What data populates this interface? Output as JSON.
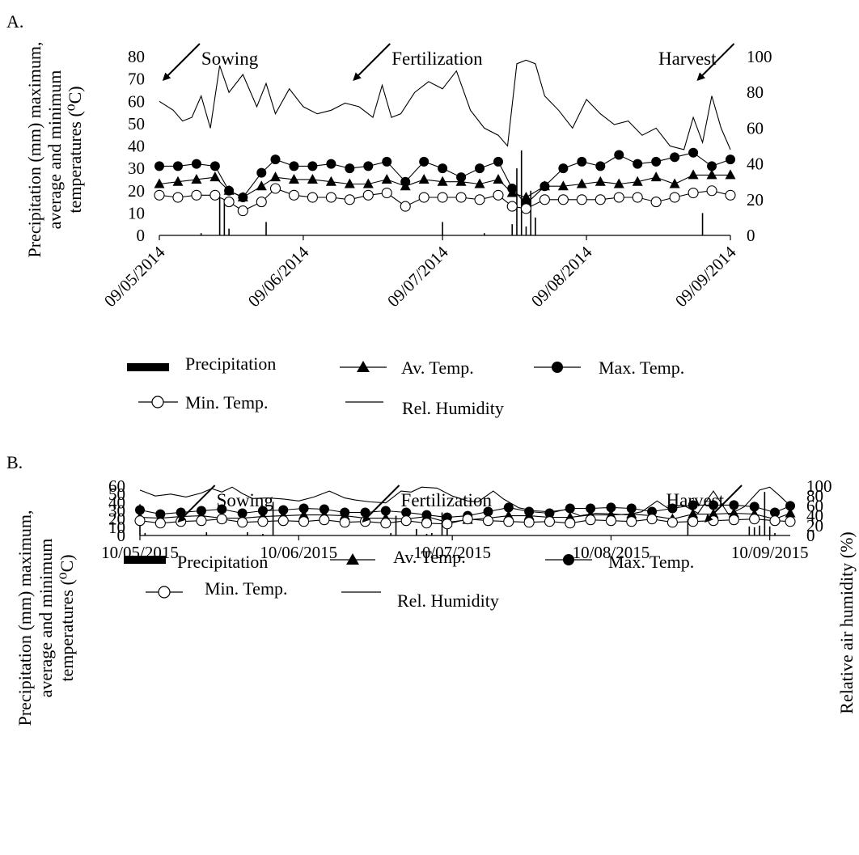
{
  "figure": {
    "legend": {
      "precipitation": "Precipitation",
      "avg": "Av. Temp.",
      "max": "Max. Temp.",
      "min": "Min. Temp.",
      "rh": "Rel. Humidity"
    },
    "colors": {
      "ink": "#000000",
      "background": "#ffffff",
      "open_marker_fill": "#ffffff"
    }
  },
  "chart_data": [
    {
      "type": "line",
      "panel_label": "A.",
      "ylabel": [
        "Precipitation (mm) maximum,",
        "average and minimum",
        "temperatures (⁰C)"
      ],
      "y2label": "",
      "ylim": [
        0,
        80
      ],
      "y_ticks": [
        0,
        10,
        20,
        30,
        40,
        50,
        60,
        70,
        80
      ],
      "y2lim": [
        0,
        100
      ],
      "y2_ticks": [
        0,
        20,
        40,
        60,
        80,
        100
      ],
      "x_range": [
        "2014-05-09",
        "2014-09-09"
      ],
      "x_tick_labels": [
        "09/05/2014",
        "09/06/2014",
        "09/07/2014",
        "09/08/2014",
        "09/09/2014"
      ],
      "x_tick_dates": [
        "2014-05-09",
        "2014-06-09",
        "2014-07-09",
        "2014-08-09",
        "2014-09-09"
      ],
      "x_tick_rotation": "-45deg",
      "annotations": [
        {
          "text": "Sowing",
          "date": "2014-05-17"
        },
        {
          "text": "Fertilization",
          "date": "2014-06-27"
        },
        {
          "text": "Harvest",
          "date": "2014-09-07"
        }
      ],
      "grid": false,
      "legend_position": "bottom",
      "series": [
        {
          "name": "Precipitation",
          "type": "bar",
          "axis": "left",
          "x": [
            "2014-05-18",
            "2014-05-22",
            "2014-05-23",
            "2014-05-24",
            "2014-06-01",
            "2014-07-09",
            "2014-07-18",
            "2014-07-24",
            "2014-07-25",
            "2014-07-26",
            "2014-07-27",
            "2014-07-28",
            "2014-07-29",
            "2014-09-03"
          ],
          "values": [
            1,
            17,
            16,
            3,
            6,
            6,
            1,
            5,
            30,
            38,
            4,
            20,
            8,
            10
          ]
        },
        {
          "name": "Av. Temp.",
          "marker": "triangle",
          "axis": "left",
          "x": [
            "2014-05-09",
            "2014-05-13",
            "2014-05-17",
            "2014-05-21",
            "2014-05-24",
            "2014-05-27",
            "2014-05-31",
            "2014-06-03",
            "2014-06-07",
            "2014-06-11",
            "2014-06-15",
            "2014-06-19",
            "2014-06-23",
            "2014-06-27",
            "2014-07-01",
            "2014-07-05",
            "2014-07-09",
            "2014-07-13",
            "2014-07-17",
            "2014-07-21",
            "2014-07-24",
            "2014-07-27",
            "2014-07-31",
            "2014-08-04",
            "2014-08-08",
            "2014-08-12",
            "2014-08-16",
            "2014-08-20",
            "2014-08-24",
            "2014-08-28",
            "2014-09-01",
            "2014-09-05",
            "2014-09-09"
          ],
          "values": [
            23,
            24,
            25,
            26,
            20,
            17,
            22,
            26,
            25,
            25,
            24,
            23,
            23,
            25,
            22,
            25,
            24,
            24,
            23,
            25,
            19,
            17,
            22,
            22,
            23,
            24,
            23,
            24,
            26,
            23,
            27,
            27,
            27
          ]
        },
        {
          "name": "Max. Temp.",
          "marker": "filled-circle",
          "axis": "left",
          "x": [
            "2014-05-09",
            "2014-05-13",
            "2014-05-17",
            "2014-05-21",
            "2014-05-24",
            "2014-05-27",
            "2014-05-31",
            "2014-06-03",
            "2014-06-07",
            "2014-06-11",
            "2014-06-15",
            "2014-06-19",
            "2014-06-23",
            "2014-06-27",
            "2014-07-01",
            "2014-07-05",
            "2014-07-09",
            "2014-07-13",
            "2014-07-17",
            "2014-07-21",
            "2014-07-24",
            "2014-07-27",
            "2014-07-31",
            "2014-08-04",
            "2014-08-08",
            "2014-08-12",
            "2014-08-16",
            "2014-08-20",
            "2014-08-24",
            "2014-08-28",
            "2014-09-01",
            "2014-09-05",
            "2014-09-09"
          ],
          "values": [
            31,
            31,
            32,
            31,
            20,
            17,
            28,
            34,
            31,
            31,
            32,
            30,
            31,
            33,
            24,
            33,
            30,
            26,
            30,
            33,
            21,
            14,
            22,
            30,
            33,
            31,
            36,
            32,
            33,
            35,
            37,
            31,
            34
          ]
        },
        {
          "name": "Min. Temp.",
          "marker": "open-circle",
          "axis": "left",
          "x": [
            "2014-05-09",
            "2014-05-13",
            "2014-05-17",
            "2014-05-21",
            "2014-05-24",
            "2014-05-27",
            "2014-05-31",
            "2014-06-03",
            "2014-06-07",
            "2014-06-11",
            "2014-06-15",
            "2014-06-19",
            "2014-06-23",
            "2014-06-27",
            "2014-07-01",
            "2014-07-05",
            "2014-07-09",
            "2014-07-13",
            "2014-07-17",
            "2014-07-21",
            "2014-07-24",
            "2014-07-27",
            "2014-07-31",
            "2014-08-04",
            "2014-08-08",
            "2014-08-12",
            "2014-08-16",
            "2014-08-20",
            "2014-08-24",
            "2014-08-28",
            "2014-09-01",
            "2014-09-05",
            "2014-09-09"
          ],
          "values": [
            18,
            17,
            18,
            18,
            15,
            11,
            15,
            21,
            18,
            17,
            17,
            16,
            18,
            19,
            13,
            17,
            17,
            17,
            16,
            18,
            13,
            12,
            16,
            16,
            16,
            16,
            17,
            17,
            15,
            17,
            19,
            20,
            18
          ]
        },
        {
          "name": "Rel. Humidity",
          "marker": "none",
          "axis": "right",
          "x": [
            "2014-05-09",
            "2014-05-12",
            "2014-05-14",
            "2014-05-16",
            "2014-05-18",
            "2014-05-20",
            "2014-05-22",
            "2014-05-24",
            "2014-05-27",
            "2014-05-30",
            "2014-06-01",
            "2014-06-03",
            "2014-06-06",
            "2014-06-09",
            "2014-06-12",
            "2014-06-15",
            "2014-06-18",
            "2014-06-21",
            "2014-06-24",
            "2014-06-26",
            "2014-06-28",
            "2014-06-30",
            "2014-07-03",
            "2014-07-06",
            "2014-07-09",
            "2014-07-12",
            "2014-07-15",
            "2014-07-18",
            "2014-07-21",
            "2014-07-23",
            "2014-07-25",
            "2014-07-27",
            "2014-07-29",
            "2014-07-31",
            "2014-08-03",
            "2014-08-06",
            "2014-08-09",
            "2014-08-12",
            "2014-08-15",
            "2014-08-18",
            "2014-08-21",
            "2014-08-24",
            "2014-08-27",
            "2014-08-30",
            "2014-09-01",
            "2014-09-03",
            "2014-09-05",
            "2014-09-07",
            "2014-09-09"
          ],
          "values": [
            75,
            70,
            64,
            66,
            78,
            60,
            95,
            80,
            90,
            72,
            85,
            68,
            82,
            72,
            68,
            70,
            74,
            72,
            66,
            84,
            66,
            68,
            80,
            86,
            82,
            92,
            70,
            60,
            56,
            50,
            96,
            98,
            96,
            78,
            70,
            60,
            76,
            68,
            62,
            64,
            56,
            60,
            50,
            48,
            66,
            52,
            78,
            60,
            48
          ]
        }
      ]
    },
    {
      "type": "line",
      "panel_label": "B.",
      "ylabel": [
        "Precipitation (mm) maximum,",
        "average and minimum",
        "temperatures (⁰C)"
      ],
      "y2label": "Relative air humidity (%)",
      "ylim": [
        0,
        60
      ],
      "y_ticks": [
        0,
        10,
        20,
        30,
        40,
        50,
        60
      ],
      "y2lim": [
        0,
        100
      ],
      "y2_ticks": [
        0,
        20,
        40,
        60,
        80,
        100
      ],
      "x_range": [
        "2015-05-10",
        "2015-09-14"
      ],
      "x_tick_labels": [
        "10/05/2015",
        "10/06/2015",
        "10/07/2015",
        "10/08/2015",
        "10/09/2015"
      ],
      "x_tick_dates": [
        "2015-05-10",
        "2015-06-10",
        "2015-07-10",
        "2015-08-10",
        "2015-09-10"
      ],
      "x_tick_rotation": "0deg",
      "annotations": [
        {
          "text": "Sowing",
          "date": "2015-05-24"
        },
        {
          "text": "Fertilization",
          "date": "2015-06-29"
        },
        {
          "text": "Harvest",
          "date": "2015-09-02"
        }
      ],
      "grid": false,
      "legend_position": "bottom",
      "series": [
        {
          "name": "Precipitation",
          "type": "bar",
          "axis": "left",
          "x": [
            "2015-05-10",
            "2015-05-11",
            "2015-05-23",
            "2015-05-31",
            "2015-06-03",
            "2015-06-05",
            "2015-06-28",
            "2015-06-29",
            "2015-07-03",
            "2015-07-05",
            "2015-07-06",
            "2015-07-08",
            "2015-07-09",
            "2015-08-25",
            "2015-09-06",
            "2015-09-07",
            "2015-09-08",
            "2015-09-09",
            "2015-09-10",
            "2015-09-11"
          ],
          "values": [
            38,
            3,
            4,
            4,
            2,
            41,
            3,
            24,
            8,
            2,
            3,
            28,
            8,
            20,
            11,
            10,
            12,
            53,
            11,
            3
          ]
        },
        {
          "name": "Av. Temp.",
          "marker": "triangle",
          "axis": "left",
          "x": [
            "2015-05-10",
            "2015-05-14",
            "2015-05-18",
            "2015-05-22",
            "2015-05-26",
            "2015-05-30",
            "2015-06-03",
            "2015-06-07",
            "2015-06-11",
            "2015-06-15",
            "2015-06-19",
            "2015-06-23",
            "2015-06-27",
            "2015-07-01",
            "2015-07-05",
            "2015-07-09",
            "2015-07-13",
            "2015-07-17",
            "2015-07-21",
            "2015-07-25",
            "2015-07-29",
            "2015-08-02",
            "2015-08-06",
            "2015-08-10",
            "2015-08-14",
            "2015-08-18",
            "2015-08-22",
            "2015-08-26",
            "2015-08-30",
            "2015-09-03",
            "2015-09-07",
            "2015-09-11",
            "2015-09-14"
          ],
          "values": [
            22,
            21,
            23,
            24,
            21,
            21,
            23,
            24,
            25,
            25,
            24,
            21,
            21,
            20,
            23,
            16,
            19,
            21,
            24,
            24,
            22,
            22,
            25,
            25,
            26,
            24,
            20,
            26,
            26,
            27,
            26,
            20,
            27
          ]
        },
        {
          "name": "Max. Temp.",
          "marker": "filled-circle",
          "axis": "left",
          "x": [
            "2015-05-10",
            "2015-05-14",
            "2015-05-18",
            "2015-05-22",
            "2015-05-26",
            "2015-05-30",
            "2015-06-03",
            "2015-06-07",
            "2015-06-11",
            "2015-06-15",
            "2015-06-19",
            "2015-06-23",
            "2015-06-27",
            "2015-07-01",
            "2015-07-05",
            "2015-07-09",
            "2015-07-13",
            "2015-07-17",
            "2015-07-21",
            "2015-07-25",
            "2015-07-29",
            "2015-08-02",
            "2015-08-06",
            "2015-08-10",
            "2015-08-14",
            "2015-08-18",
            "2015-08-22",
            "2015-08-26",
            "2015-08-30",
            "2015-09-03",
            "2015-09-07",
            "2015-09-11",
            "2015-09-14"
          ],
          "values": [
            31,
            26,
            28,
            30,
            32,
            27,
            30,
            31,
            33,
            32,
            28,
            28,
            30,
            28,
            25,
            22,
            24,
            29,
            34,
            29,
            27,
            33,
            33,
            34,
            33,
            29,
            33,
            37,
            37,
            37,
            35,
            28,
            36
          ]
        },
        {
          "name": "Min. Temp.",
          "marker": "open-circle",
          "axis": "left",
          "x": [
            "2015-05-10",
            "2015-05-14",
            "2015-05-18",
            "2015-05-22",
            "2015-05-26",
            "2015-05-30",
            "2015-06-03",
            "2015-06-07",
            "2015-06-11",
            "2015-06-15",
            "2015-06-19",
            "2015-06-23",
            "2015-06-27",
            "2015-07-01",
            "2015-07-05",
            "2015-07-09",
            "2015-07-13",
            "2015-07-17",
            "2015-07-21",
            "2015-07-25",
            "2015-07-29",
            "2015-08-02",
            "2015-08-06",
            "2015-08-10",
            "2015-08-14",
            "2015-08-18",
            "2015-08-22",
            "2015-08-26",
            "2015-08-30",
            "2015-09-03",
            "2015-09-07",
            "2015-09-11",
            "2015-09-14"
          ],
          "values": [
            18,
            15,
            17,
            18,
            20,
            16,
            17,
            18,
            17,
            19,
            16,
            17,
            15,
            18,
            15,
            14,
            20,
            18,
            17,
            16,
            17,
            15,
            19,
            18,
            17,
            20,
            16,
            17,
            18,
            19,
            20,
            18,
            17
          ]
        },
        {
          "name": "Rel. Humidity",
          "marker": "none",
          "axis": "right",
          "x": [
            "2015-05-10",
            "2015-05-13",
            "2015-05-16",
            "2015-05-19",
            "2015-05-22",
            "2015-05-24",
            "2015-05-26",
            "2015-05-28",
            "2015-05-30",
            "2015-06-01",
            "2015-06-04",
            "2015-06-07",
            "2015-06-10",
            "2015-06-13",
            "2015-06-16",
            "2015-06-19",
            "2015-06-21",
            "2015-06-24",
            "2015-06-27",
            "2015-06-30",
            "2015-07-02",
            "2015-07-04",
            "2015-07-07",
            "2015-07-10",
            "2015-07-13",
            "2015-07-15",
            "2015-07-18",
            "2015-07-20",
            "2015-07-23",
            "2015-07-26",
            "2015-07-29",
            "2015-08-01",
            "2015-08-04",
            "2015-08-07",
            "2015-08-10",
            "2015-08-13",
            "2015-08-16",
            "2015-08-19",
            "2015-08-21",
            "2015-08-24",
            "2015-08-27",
            "2015-08-30",
            "2015-09-02",
            "2015-09-05",
            "2015-09-08",
            "2015-09-10",
            "2015-09-12",
            "2015-09-14"
          ],
          "values": [
            92,
            80,
            84,
            78,
            86,
            95,
            88,
            98,
            85,
            75,
            76,
            74,
            70,
            78,
            90,
            76,
            72,
            68,
            66,
            90,
            88,
            98,
            96,
            80,
            70,
            68,
            90,
            74,
            56,
            50,
            48,
            52,
            40,
            45,
            44,
            42,
            48,
            70,
            56,
            62,
            45,
            90,
            42,
            58,
            92,
            98,
            80,
            60
          ]
        }
      ]
    }
  ]
}
